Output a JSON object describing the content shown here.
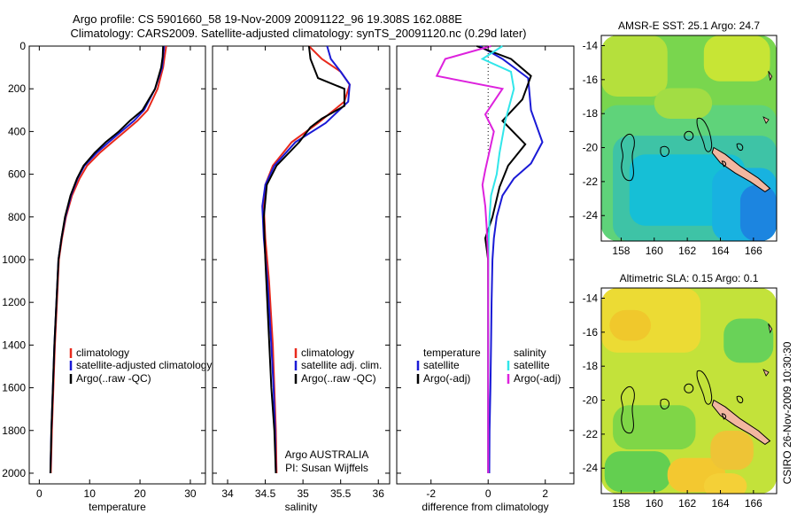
{
  "title_line1": "Argo profile: CS 5901660_58 19-Nov-2009 20091122_96 19.308S 162.088E",
  "title_line2": "Climatology: CARS2009. Satellite-adjusted climatology: synTS_20091120.nc (0.29d later)",
  "side_label": "CSIRO 26-Nov-2009 10:30:30",
  "colors": {
    "red": "#e8291c",
    "blue": "#1a1ad6",
    "black": "#000000",
    "cyan": "#30e6ea",
    "magenta": "#dd22dd",
    "land": "#f2b7a0"
  },
  "chart_data": [
    {
      "type": "line",
      "id": "temperature",
      "xlabel": "temperature",
      "ylabel": "",
      "xlim": [
        -2,
        33
      ],
      "ylim": [
        2050,
        0
      ],
      "xticks": [
        0,
        10,
        20,
        30
      ],
      "yticks": [
        0,
        200,
        400,
        600,
        800,
        1000,
        1200,
        1400,
        1600,
        1800,
        2000
      ],
      "legend": [
        "climatology",
        "satellite-adjusted climatology",
        "Argo(..raw -QC)"
      ],
      "series": [
        {
          "name": "climatology",
          "color": "red",
          "x": [
            25.2,
            24.9,
            24.6,
            23.5,
            21.5,
            19.5,
            17.0,
            14.5,
            12.0,
            9.5,
            8.0,
            6.5,
            5.3,
            4.5,
            3.9,
            3.5,
            3.1,
            2.8,
            2.5,
            2.3
          ],
          "y": [
            0,
            50,
            100,
            200,
            300,
            350,
            400,
            450,
            500,
            560,
            620,
            700,
            800,
            900,
            1000,
            1200,
            1400,
            1600,
            1800,
            2000
          ]
        },
        {
          "name": "satellite-adjusted climatology",
          "color": "blue",
          "x": [
            24.8,
            24.6,
            24.4,
            23.0,
            20.8,
            18.8,
            16.3,
            13.8,
            11.4,
            9.0,
            7.6,
            6.3,
            5.2,
            4.4,
            3.8,
            3.4,
            3.0,
            2.7,
            2.4,
            2.2
          ],
          "y": [
            0,
            50,
            100,
            200,
            300,
            350,
            400,
            450,
            500,
            560,
            620,
            700,
            800,
            900,
            1000,
            1200,
            1400,
            1600,
            1800,
            2000
          ]
        },
        {
          "name": "Argo(..raw -QC)",
          "color": "black",
          "x": [
            24.6,
            24.5,
            24.2,
            23.0,
            20.5,
            18.0,
            15.8,
            13.2,
            11.0,
            8.8,
            7.5,
            6.2,
            5.1,
            4.4,
            3.8,
            3.4,
            3.0,
            2.7,
            2.4,
            2.2
          ],
          "y": [
            0,
            50,
            100,
            200,
            300,
            350,
            400,
            450,
            500,
            560,
            620,
            700,
            800,
            900,
            1000,
            1200,
            1400,
            1600,
            1800,
            2000
          ]
        }
      ]
    },
    {
      "type": "line",
      "id": "salinity",
      "xlabel": "salinity",
      "xlim": [
        33.8,
        36.15
      ],
      "ylim": [
        2050,
        0
      ],
      "xticks": [
        34,
        34.5,
        35,
        35.5,
        36
      ],
      "xtick_labels": [
        "34",
        "34.5",
        "35",
        "35.5",
        "36"
      ],
      "legend": [
        "climatology",
        "satellite adj. clim.",
        "Argo(..raw -QC)"
      ],
      "annotation": [
        "Argo AUSTRALIA",
        "PI: Susan Wijffels"
      ],
      "series": [
        {
          "name": "climatology",
          "color": "red",
          "x": [
            35.08,
            35.25,
            35.5,
            35.62,
            35.55,
            35.2,
            34.85,
            34.6,
            34.5,
            34.48,
            34.5,
            34.55,
            34.6,
            34.62,
            34.64,
            34.65
          ],
          "y": [
            0,
            60,
            120,
            180,
            260,
            360,
            450,
            560,
            650,
            750,
            900,
            1100,
            1400,
            1600,
            1800,
            2000
          ]
        },
        {
          "name": "satellite adj. clim.",
          "color": "blue",
          "x": [
            35.32,
            35.37,
            35.5,
            35.62,
            35.6,
            35.3,
            34.9,
            34.62,
            34.5,
            34.46,
            34.48,
            34.53,
            34.58,
            34.61,
            34.63,
            34.64
          ],
          "y": [
            0,
            60,
            120,
            180,
            260,
            360,
            450,
            560,
            650,
            750,
            900,
            1100,
            1400,
            1600,
            1800,
            2000
          ]
        },
        {
          "name": "Argo(..raw -QC)",
          "color": "black",
          "x": [
            35.08,
            35.1,
            35.2,
            35.55,
            35.55,
            35.25,
            35.1,
            34.95,
            34.65,
            34.52,
            34.48,
            34.5,
            34.54,
            34.58,
            34.62,
            34.64
          ],
          "y": [
            0,
            60,
            150,
            200,
            280,
            340,
            380,
            450,
            560,
            650,
            800,
            1000,
            1300,
            1600,
            1800,
            2000
          ]
        }
      ]
    },
    {
      "type": "line",
      "id": "difference",
      "xlabel": "difference from climatology",
      "xlim": [
        -3.2,
        3.0
      ],
      "ylim": [
        2050,
        0
      ],
      "xticks": [
        -2,
        0,
        2
      ],
      "xtick_labels": [
        "-2",
        "0",
        "2"
      ],
      "legend": [
        "temperature",
        "satellite",
        "Argo(-adj)",
        "salinity",
        "satellite",
        "Argo(-adj)"
      ],
      "series": [
        {
          "name": "temperature satellite",
          "color": "blue",
          "x": [
            -0.3,
            0.5,
            1.4,
            1.5,
            1.9,
            1.5,
            0.9,
            0.5,
            0.3,
            0.2,
            0.15,
            0.12,
            0.1,
            0.08,
            0.05,
            0.04
          ],
          "y": [
            0,
            60,
            150,
            300,
            450,
            550,
            620,
            700,
            800,
            900,
            1000,
            1200,
            1400,
            1600,
            1800,
            2000
          ]
        },
        {
          "name": "temperature Argo(-adj)",
          "color": "black",
          "x": [
            -0.4,
            0.8,
            1.5,
            1.2,
            0.5,
            1.3,
            0.7,
            0.4,
            0.15,
            -0.1,
            0.0,
            0.0,
            0.0,
            0.0,
            0.0,
            0.0
          ],
          "y": [
            0,
            60,
            140,
            250,
            350,
            460,
            560,
            660,
            800,
            900,
            1000,
            1150,
            1400,
            1600,
            1800,
            2000
          ]
        },
        {
          "name": "salinity satellite",
          "color": "cyan",
          "x": [
            0.5,
            -0.2,
            0.8,
            0.9,
            0.6,
            0.4,
            0.3,
            0.1,
            0.05,
            0.02,
            0.01,
            0.0,
            0.0,
            0.0,
            0.0,
            0.0
          ],
          "y": [
            0,
            60,
            120,
            200,
            350,
            500,
            600,
            700,
            800,
            900,
            1000,
            1200,
            1400,
            1600,
            1800,
            2000
          ]
        },
        {
          "name": "salinity Argo(-adj)",
          "color": "magenta",
          "x": [
            0.1,
            -1.5,
            -1.8,
            0.5,
            -0.1,
            0.2,
            -0.1,
            -0.2,
            -0.1,
            -0.05,
            0.0,
            0.0,
            0.0,
            0.0,
            0.0,
            0.0
          ],
          "y": [
            0,
            60,
            140,
            200,
            320,
            400,
            580,
            650,
            750,
            850,
            1000,
            1200,
            1400,
            1600,
            1800,
            2000
          ]
        }
      ]
    },
    {
      "type": "heatmap",
      "id": "sst_map",
      "title": "AMSR-E SST: 25.1 Argo: 24.7",
      "xticks": [
        158,
        160,
        162,
        164,
        166
      ],
      "yticks": [
        -14,
        -16,
        -18,
        -20,
        -22,
        -24
      ],
      "xlim": [
        156.8,
        167.4
      ],
      "ylim": [
        -25.5,
        -13.4
      ],
      "argo_lon": 162.088,
      "argo_lat": -19.308,
      "regions": [
        {
          "color": "#79d64e",
          "lon": 156.8,
          "lat": -13.4,
          "w": 10.6,
          "h": 12.1
        },
        {
          "color": "#5fd37a",
          "lon": 156.8,
          "lat": -17.5,
          "w": 10.6,
          "h": 8.0
        },
        {
          "color": "#3ec3a6",
          "lon": 157.5,
          "lat": -19.3,
          "w": 9.9,
          "h": 6.2
        },
        {
          "color": "#16bfd6",
          "lon": 158.5,
          "lat": -20.4,
          "w": 7.0,
          "h": 4.2
        },
        {
          "color": "#18b2e0",
          "lon": 163.5,
          "lat": -21.2,
          "w": 3.9,
          "h": 4.3
        },
        {
          "color": "#1c85e0",
          "lon": 165.2,
          "lat": -22.2,
          "w": 2.2,
          "h": 3.3
        },
        {
          "color": "#b5e03c",
          "lon": 156.8,
          "lat": -13.4,
          "w": 4.0,
          "h": 3.6
        },
        {
          "color": "#c7e535",
          "lon": 163.0,
          "lat": -13.4,
          "w": 4.0,
          "h": 2.7
        },
        {
          "color": "#a2dd44",
          "lon": 160.0,
          "lat": -16.5,
          "w": 3.5,
          "h": 1.8
        }
      ]
    },
    {
      "type": "heatmap",
      "id": "sla_map",
      "title": "Altimetric SLA: 0.15 Argo: 0.1",
      "xticks": [
        158,
        160,
        162,
        164,
        166
      ],
      "yticks": [
        -14,
        -16,
        -18,
        -20,
        -22,
        -24
      ],
      "xlim": [
        156.8,
        167.4
      ],
      "ylim": [
        -25.5,
        -13.4
      ],
      "argo_lon": 162.088,
      "argo_lat": -19.308,
      "regions": [
        {
          "color": "#c3e23a",
          "lon": 156.8,
          "lat": -13.4,
          "w": 10.6,
          "h": 12.1
        },
        {
          "color": "#ecdb34",
          "lon": 156.8,
          "lat": -13.4,
          "w": 6.0,
          "h": 3.8
        },
        {
          "color": "#f0c82c",
          "lon": 157.3,
          "lat": -14.7,
          "w": 2.5,
          "h": 1.8
        },
        {
          "color": "#7fd647",
          "lon": 157.5,
          "lat": -20.3,
          "w": 5.0,
          "h": 2.6
        },
        {
          "color": "#63cf50",
          "lon": 157.0,
          "lat": -23.0,
          "w": 4.0,
          "h": 2.4
        },
        {
          "color": "#f3c830",
          "lon": 160.8,
          "lat": -23.4,
          "w": 3.5,
          "h": 2.0
        },
        {
          "color": "#eec436",
          "lon": 163.4,
          "lat": -21.8,
          "w": 2.6,
          "h": 2.3
        },
        {
          "color": "#69d258",
          "lon": 164.2,
          "lat": -15.2,
          "w": 3.0,
          "h": 2.6
        },
        {
          "color": "#f4d037",
          "lon": 163.0,
          "lat": -24.3,
          "w": 2.6,
          "h": 1.5
        }
      ]
    }
  ]
}
